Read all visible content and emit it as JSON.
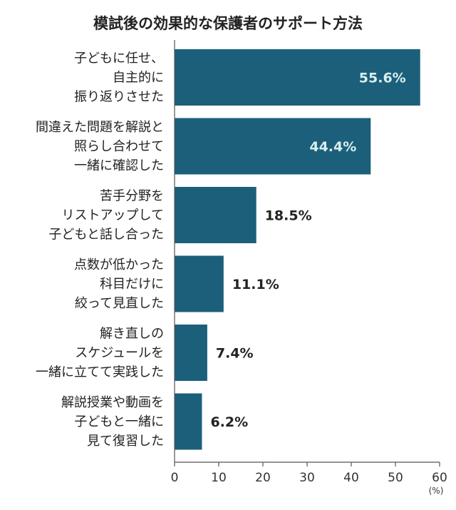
{
  "chart_data": {
    "type": "bar",
    "orientation": "horizontal",
    "title": "模試後の効果的な保護者のサポート方法",
    "categories": [
      [
        "子どもに任せ、",
        "自主的に",
        "振り返りさせた"
      ],
      [
        "間違えた問題を解説と",
        "照らし合わせて",
        "一緒に確認した"
      ],
      [
        "苦手分野を",
        "リストアップして",
        "子どもと話し合った"
      ],
      [
        "点数が低かった",
        "科目だけに",
        "絞って見直した"
      ],
      [
        "解き直しの",
        "スケジュールを",
        "一緒に立てて実践した"
      ],
      [
        "解説授業や動画を",
        "子どもと一緒に",
        "見て復習した"
      ]
    ],
    "values": [
      55.6,
      44.4,
      18.5,
      11.1,
      7.4,
      6.2
    ],
    "value_labels": [
      "55.6%",
      "44.4%",
      "18.5%",
      "11.1%",
      "7.4%",
      "6.2%"
    ],
    "xlim": [
      0,
      60
    ],
    "xticks": [
      0,
      10,
      20,
      30,
      40,
      50,
      60
    ],
    "xticklabels": [
      "0",
      "10",
      "20",
      "30",
      "40",
      "50",
      "60"
    ],
    "unit_label": "(%)",
    "bar_color": "#1c5f7a",
    "inside_label_color": "#d9f0ee",
    "outside_label_color": "#222222",
    "grid": false
  }
}
